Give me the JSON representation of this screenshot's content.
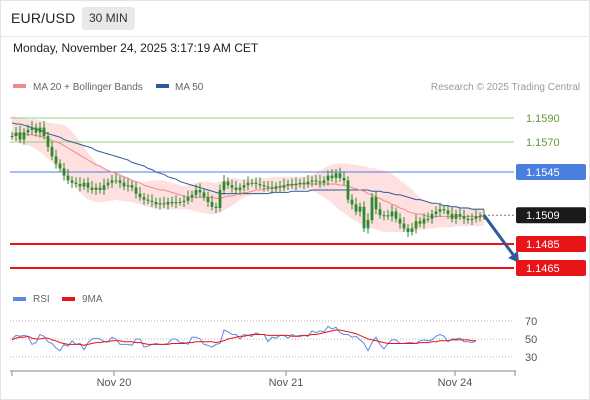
{
  "header": {
    "symbol": "EUR/USD",
    "timeframe": "30 MIN",
    "datetime": "Monday, November 24, 2025 3:17:19 AM CET"
  },
  "colors": {
    "candle": "#2f8a2f",
    "ma20": "#f08a8a",
    "bollinger_fill": "#fde0df",
    "ma50": "#2d5a9a",
    "support": "#e8141a",
    "resistance": "#9bd07a",
    "pivot": "#4a7fe0",
    "current": "#1a1a1a",
    "arrow": "#2d5a9a",
    "rsi": "#5b8ae0",
    "rsi_ma": "#e8141a"
  },
  "chart_data": [
    {
      "type": "line",
      "title": "",
      "legend": [
        {
          "name": "MA 20 + Bollinger Bands",
          "icon": "ma20-legend-icon"
        },
        {
          "name": "MA 50",
          "icon": "ma50-legend-icon"
        }
      ],
      "credit": "Research © 2025 Trading Central",
      "legend_position": "top-left",
      "x_ticks": [
        "Nov 20",
        "Nov 21",
        "Nov 24"
      ],
      "ylim": [
        1.1455,
        1.1605
      ],
      "levels": [
        {
          "value": 1.159,
          "label": "1.1590",
          "kind": "resistance"
        },
        {
          "value": 1.157,
          "label": "1.1570",
          "kind": "resistance"
        },
        {
          "value": 1.1545,
          "label": "1.1545",
          "kind": "pivot"
        },
        {
          "value": 1.1509,
          "label": "1.1509",
          "kind": "current"
        },
        {
          "value": 1.1485,
          "label": "1.1485",
          "kind": "support"
        },
        {
          "value": 1.1465,
          "label": "1.1465",
          "kind": "support"
        }
      ],
      "series": [
        {
          "name": "Price",
          "style": "candlestick",
          "x_range": [
            0,
            118
          ],
          "y": [
            1.1575,
            1.1578,
            1.1572,
            1.1578,
            1.158,
            1.1582,
            1.1578,
            1.1582,
            1.1575,
            1.1566,
            1.1558,
            1.1552,
            1.1548,
            1.1542,
            1.1538,
            1.1536,
            1.1535,
            1.1533,
            1.1536,
            1.1532,
            1.153,
            1.1532,
            1.153,
            1.1534,
            1.1536,
            1.1538,
            1.1538,
            1.1536,
            1.1533,
            1.1534,
            1.1532,
            1.1527,
            1.1524,
            1.1522,
            1.1521,
            1.152,
            1.1518,
            1.1519,
            1.1518,
            1.152,
            1.1519,
            1.152,
            1.152,
            1.1521,
            1.1524,
            1.1526,
            1.153,
            1.1528,
            1.1524,
            1.152,
            1.1516,
            1.1515,
            1.153,
            1.1537,
            1.1534,
            1.1532,
            1.153,
            1.1532,
            1.1534,
            1.1536,
            1.1536,
            1.1535,
            1.1534,
            1.1533,
            1.1532,
            1.1531,
            1.1533,
            1.1532,
            1.1534,
            1.1535,
            1.1534,
            1.1535,
            1.1536,
            1.1535,
            1.1537,
            1.1538,
            1.1537,
            1.1536,
            1.1538,
            1.1542,
            1.154,
            1.1544,
            1.154,
            1.1538,
            1.1522,
            1.1518,
            1.1512,
            1.1516,
            1.1498,
            1.1505,
            1.1524,
            1.1514,
            1.1509,
            1.1509,
            1.1508,
            1.1512,
            1.1506,
            1.1502,
            1.1498,
            1.1495,
            1.1498,
            1.1504,
            1.1502,
            1.1506,
            1.1506,
            1.151,
            1.1512,
            1.1514,
            1.1513,
            1.151,
            1.1506,
            1.151,
            1.1508,
            1.1506,
            1.1505,
            1.1506,
            1.1508,
            1.1508,
            1.1509
          ]
        },
        {
          "name": "MA 20",
          "x_range": [
            0,
            118
          ],
          "y": [
            1.1576,
            1.1576,
            1.1577,
            1.1577,
            1.1576,
            1.1576,
            1.1575,
            1.1575,
            1.1574,
            1.1573,
            1.1571,
            1.157,
            1.1569,
            1.1567,
            1.1565,
            1.1563,
            1.1561,
            1.1559,
            1.1557,
            1.1555,
            1.1553,
            1.1551,
            1.155,
            1.1548,
            1.1546,
            1.1545,
            1.1544,
            1.1542,
            1.1541,
            1.154,
            1.1538,
            1.1537,
            1.1536,
            1.1534,
            1.1533,
            1.1532,
            1.1531,
            1.153,
            1.153,
            1.1529,
            1.1528,
            1.1527,
            1.1526,
            1.1525,
            1.1524,
            1.1524,
            1.1524,
            1.1524,
            1.1524,
            1.1524,
            1.1524,
            1.1523,
            1.1523,
            1.1524,
            1.1525,
            1.1525,
            1.1526,
            1.1527,
            1.1528,
            1.1528,
            1.1529,
            1.153,
            1.153,
            1.1531,
            1.1531,
            1.1532,
            1.1532,
            1.1533,
            1.1533,
            1.1534,
            1.1534,
            1.1535,
            1.1535,
            1.1535,
            1.1535,
            1.1535,
            1.1535,
            1.1535,
            1.1535,
            1.1535,
            1.1535,
            1.1535,
            1.1534,
            1.1534,
            1.1533,
            1.1532,
            1.1531,
            1.153,
            1.1529,
            1.1527,
            1.1526,
            1.1524,
            1.1523,
            1.1521,
            1.152,
            1.1518,
            1.1517,
            1.1515,
            1.1514,
            1.1512,
            1.1511,
            1.151,
            1.151,
            1.1509,
            1.1508,
            1.1508,
            1.1508,
            1.1508,
            1.1508,
            1.1508,
            1.1508,
            1.1508,
            1.1508,
            1.1508,
            1.1508,
            1.1508,
            1.1508,
            1.1508,
            1.1508
          ]
        },
        {
          "name": "Bollinger upper",
          "x_range": [
            0,
            118
          ],
          "y": [
            1.1592,
            1.1591,
            1.159,
            1.159,
            1.1589,
            1.1589,
            1.1589,
            1.1588,
            1.1587,
            1.1586,
            1.1586,
            1.1585,
            1.1585,
            1.1584,
            1.1582,
            1.1579,
            1.1575,
            1.157,
            1.1566,
            1.1561,
            1.1557,
            1.1553,
            1.155,
            1.1548,
            1.1547,
            1.1546,
            1.1545,
            1.1544,
            1.1542,
            1.154,
            1.1538,
            1.1537,
            1.1536,
            1.1537,
            1.1537,
            1.1538,
            1.1538,
            1.1538,
            1.1538,
            1.1537,
            1.1536,
            1.1535,
            1.1534,
            1.1533,
            1.1534,
            1.1535,
            1.1536,
            1.1537,
            1.1537,
            1.1537,
            1.1536,
            1.1536,
            1.1537,
            1.1538,
            1.1539,
            1.154,
            1.154,
            1.1539,
            1.1539,
            1.1539,
            1.1539,
            1.1539,
            1.154,
            1.154,
            1.154,
            1.1541,
            1.1541,
            1.1541,
            1.1541,
            1.1541,
            1.1541,
            1.1541,
            1.1541,
            1.1541,
            1.1542,
            1.1543,
            1.1544,
            1.1546,
            1.1548,
            1.155,
            1.1551,
            1.1552,
            1.1552,
            1.1552,
            1.1552,
            1.1551,
            1.1551,
            1.155,
            1.155,
            1.1549,
            1.1548,
            1.1548,
            1.1547,
            1.1546,
            1.1545,
            1.1543,
            1.1541,
            1.1538,
            1.1536,
            1.1533,
            1.153,
            1.1527,
            1.1524,
            1.1522,
            1.152,
            1.1519,
            1.1518,
            1.1517,
            1.1517,
            1.1517,
            1.1517,
            1.1517,
            1.1516,
            1.1516,
            1.1516,
            1.1515,
            1.1515,
            1.1515,
            1.1515
          ]
        },
        {
          "name": "Bollinger lower",
          "x_range": [
            0,
            118
          ],
          "y": [
            1.1572,
            1.1571,
            1.1569,
            1.1568,
            1.1567,
            1.1566,
            1.1564,
            1.1562,
            1.1559,
            1.1556,
            1.1553,
            1.155,
            1.1547,
            1.1543,
            1.154,
            1.1536,
            1.1532,
            1.1528,
            1.1525,
            1.1522,
            1.1521,
            1.152,
            1.152,
            1.152,
            1.1521,
            1.1521,
            1.1522,
            1.1521,
            1.1521,
            1.152,
            1.152,
            1.1519,
            1.1518,
            1.1517,
            1.1516,
            1.1515,
            1.1514,
            1.1514,
            1.1514,
            1.1514,
            1.1514,
            1.1514,
            1.1514,
            1.1514,
            1.1514,
            1.1513,
            1.1512,
            1.1511,
            1.1511,
            1.151,
            1.151,
            1.151,
            1.1511,
            1.1513,
            1.1515,
            1.1517,
            1.1519,
            1.1522,
            1.1524,
            1.1525,
            1.1526,
            1.1527,
            1.1527,
            1.1528,
            1.1528,
            1.1528,
            1.1529,
            1.1529,
            1.1529,
            1.153,
            1.153,
            1.153,
            1.153,
            1.153,
            1.153,
            1.1529,
            1.1528,
            1.1526,
            1.1524,
            1.1522,
            1.1519,
            1.1516,
            1.1513,
            1.1511,
            1.1508,
            1.1506,
            1.1504,
            1.1502,
            1.1501,
            1.1499,
            1.1498,
            1.1497,
            1.1496,
            1.1495,
            1.1495,
            1.1495,
            1.1495,
            1.1495,
            1.1495,
            1.1496,
            1.1496,
            1.1496,
            1.1497,
            1.1497,
            1.1498,
            1.1498,
            1.1498,
            1.1499,
            1.1499,
            1.1499,
            1.1499,
            1.15,
            1.15,
            1.15,
            1.15,
            1.15,
            1.15,
            1.15,
            1.15
          ]
        },
        {
          "name": "MA 50",
          "x_range": [
            0,
            118
          ],
          "y": [
            1.1586,
            1.1585,
            1.1585,
            1.1584,
            1.1583,
            1.1582,
            1.1581,
            1.158,
            1.1578,
            1.1577,
            1.1576,
            1.1575,
            1.1574,
            1.1572,
            1.1571,
            1.157,
            1.1569,
            1.1568,
            1.1567,
            1.1566,
            1.1565,
            1.1563,
            1.1562,
            1.1561,
            1.156,
            1.1559,
            1.1558,
            1.1557,
            1.1556,
            1.1555,
            1.1553,
            1.1552,
            1.1551,
            1.155,
            1.1548,
            1.1547,
            1.1545,
            1.1544,
            1.1543,
            1.1541,
            1.154,
            1.1539,
            1.1537,
            1.1536,
            1.1535,
            1.1534,
            1.1533,
            1.1532,
            1.1531,
            1.153,
            1.1529,
            1.1528,
            1.1527,
            1.1527,
            1.1527,
            1.1527,
            1.1527,
            1.1527,
            1.1527,
            1.1527,
            1.1527,
            1.1527,
            1.1527,
            1.1527,
            1.1527,
            1.1528,
            1.1528,
            1.1528,
            1.1528,
            1.1528,
            1.1529,
            1.1529,
            1.1529,
            1.1529,
            1.1529,
            1.153,
            1.153,
            1.153,
            1.153,
            1.153,
            1.153,
            1.153,
            1.153,
            1.153,
            1.153,
            1.153,
            1.153,
            1.153,
            1.153,
            1.153,
            1.1529,
            1.1529,
            1.1529,
            1.1528,
            1.1528,
            1.1527,
            1.1526,
            1.1526,
            1.1525,
            1.1524,
            1.1523,
            1.1522,
            1.1522,
            1.1521,
            1.152,
            1.1519,
            1.1519,
            1.1518,
            1.1517,
            1.1517,
            1.1516,
            1.1516,
            1.1515,
            1.1515,
            1.1515,
            1.1514,
            1.1514,
            1.1514,
            1.1514
          ]
        },
        {
          "name": "Projected path",
          "style": "arrow",
          "x": [
            118,
            125
          ],
          "y": [
            1.1509,
            1.1472
          ]
        }
      ]
    },
    {
      "type": "line",
      "title": "",
      "legend": [
        {
          "name": "RSI",
          "icon": "rsi-legend-icon"
        },
        {
          "name": "9MA",
          "icon": "9ma-legend-icon"
        }
      ],
      "legend_position": "top-left",
      "ylim": [
        20,
        80
      ],
      "y_ticks": [
        30,
        50,
        70
      ],
      "grid": true,
      "series": [
        {
          "name": "RSI",
          "x_range": [
            0,
            116
          ],
          "y": [
            50,
            54,
            53,
            54,
            53,
            44,
            46,
            55,
            53,
            47,
            45,
            40,
            37,
            44,
            42,
            48,
            44,
            45,
            38,
            46,
            50,
            51,
            50,
            47,
            47,
            52,
            50,
            44,
            44,
            44,
            43,
            50,
            50,
            41,
            42,
            44,
            45,
            44,
            44,
            45,
            50,
            50,
            46,
            46,
            44,
            52,
            52,
            50,
            44,
            43,
            41,
            44,
            45,
            60,
            58,
            55,
            55,
            50,
            55,
            54,
            53,
            57,
            55,
            55,
            47,
            52,
            51,
            54,
            54,
            51,
            55,
            53,
            54,
            54,
            53,
            59,
            57,
            59,
            58,
            64,
            61,
            63,
            57,
            55,
            55,
            52,
            53,
            49,
            45,
            37,
            46,
            52,
            44,
            39,
            45,
            49,
            49,
            45,
            45,
            46,
            46,
            45,
            48,
            49,
            48,
            49,
            53,
            55,
            53,
            47,
            50,
            50,
            51,
            47,
            47,
            46,
            48
          ]
        },
        {
          "name": "9MA",
          "x_range": [
            0,
            116
          ],
          "y": [
            49,
            51,
            52,
            52,
            53,
            51,
            50,
            50,
            51,
            51,
            49,
            48,
            46,
            45,
            44,
            44,
            44,
            44,
            43,
            44,
            45,
            46,
            46,
            47,
            47,
            48,
            48,
            48,
            47,
            47,
            47,
            46,
            46,
            45,
            44,
            44,
            44,
            44,
            44,
            44,
            45,
            45,
            45,
            45,
            46,
            46,
            47,
            47,
            47,
            47,
            47,
            46,
            47,
            48,
            50,
            51,
            52,
            53,
            53,
            54,
            55,
            55,
            55,
            55,
            54,
            54,
            54,
            54,
            54,
            54,
            53,
            53,
            53,
            54,
            54,
            55,
            55,
            56,
            57,
            58,
            59,
            60,
            60,
            59,
            58,
            57,
            56,
            54,
            52,
            50,
            49,
            48,
            47,
            46,
            45,
            45,
            45,
            45,
            45,
            45,
            45,
            45,
            46,
            46,
            46,
            47,
            47,
            48,
            48,
            48,
            49,
            49,
            49,
            49,
            49,
            48,
            48
          ]
        }
      ]
    }
  ]
}
